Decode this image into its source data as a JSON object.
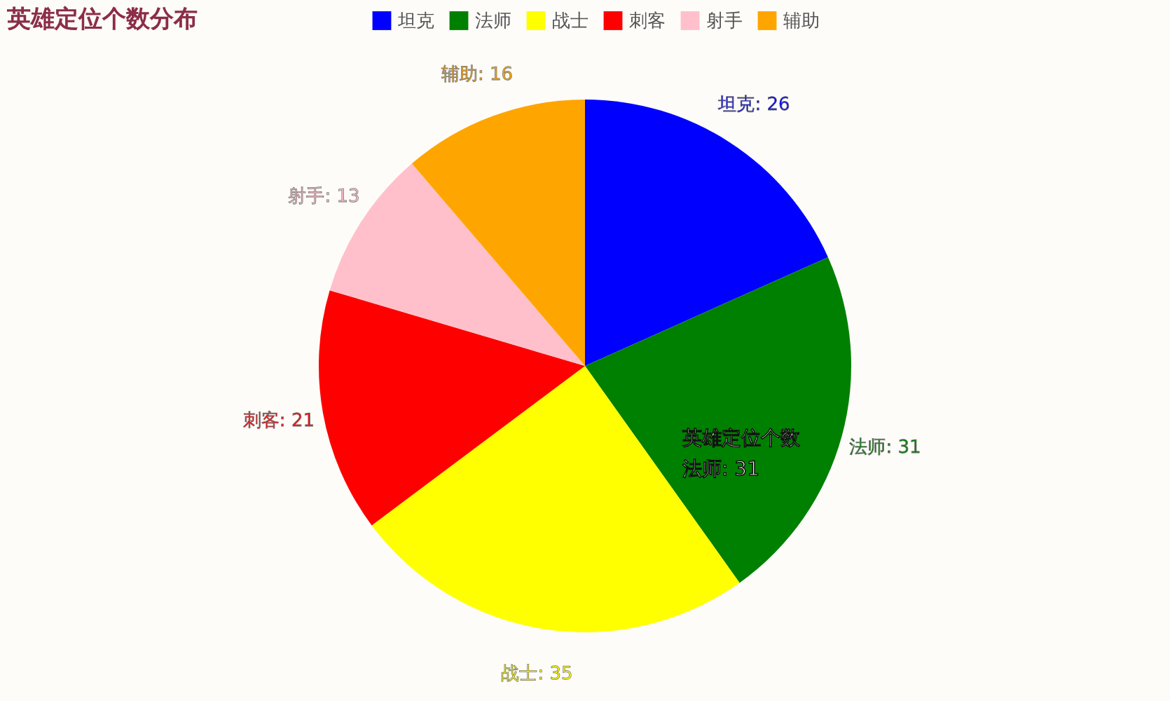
{
  "chart_data": {
    "type": "pie",
    "title": "英雄定位个数分布",
    "categories": [
      "坦克",
      "法师",
      "战士",
      "刺客",
      "射手",
      "辅助"
    ],
    "values": [
      26,
      31,
      35,
      21,
      13,
      16
    ],
    "colors": [
      "#0000ff",
      "#008000",
      "#ffff00",
      "#ff0000",
      "#ffc0cb",
      "#ffa500"
    ],
    "value_labels": [
      "坦克: 26",
      "法师: 31",
      "战士: 35",
      "刺客: 21",
      "射手: 13",
      "辅助: 16"
    ],
    "legend": "top",
    "annotations": [
      "英雄定位个数",
      "法师: 31"
    ]
  }
}
